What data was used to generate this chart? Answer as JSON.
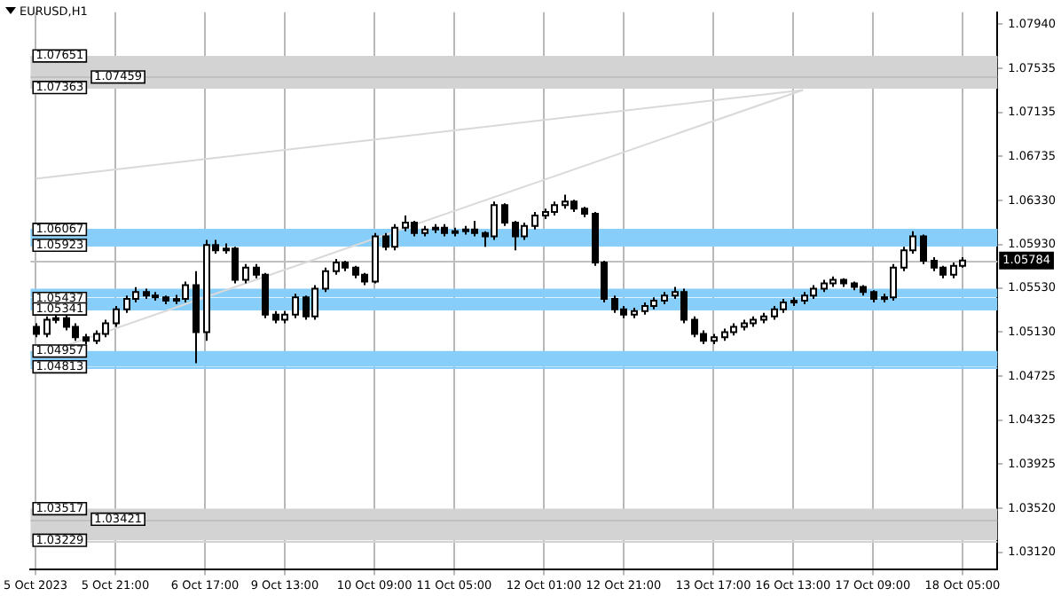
{
  "chart_data": {
    "type": "candlestick",
    "title": "EURUSD,H1",
    "categories": [
      "5 Oct 2023",
      null,
      null,
      null,
      null,
      null,
      null,
      null,
      "5 Oct 21:00",
      null,
      null,
      null,
      null,
      null,
      null,
      null,
      null,
      "6 Oct 17:00",
      null,
      null,
      null,
      null,
      null,
      null,
      null,
      "9 Oct 13:00",
      null,
      null,
      null,
      null,
      null,
      null,
      null,
      null,
      "10 Oct 09:00",
      null,
      null,
      null,
      null,
      null,
      null,
      null,
      "11 Oct 05:00",
      null,
      null,
      null,
      null,
      null,
      null,
      null,
      null,
      "12 Oct 01:00",
      null,
      null,
      null,
      null,
      null,
      null,
      null,
      "12 Oct 21:00",
      null,
      null,
      null,
      null,
      null,
      null,
      null,
      null,
      "13 Oct 17:00",
      null,
      null,
      null,
      null,
      null,
      null,
      null,
      "16 Oct 13:00",
      null,
      null,
      null,
      null,
      null,
      null,
      null,
      "17 Oct 09:00",
      null,
      null,
      null,
      null,
      null,
      null,
      null,
      null,
      "18 Oct 05:00",
      null,
      null,
      null
    ],
    "ohlc": [
      [
        1.05178,
        1.0521,
        1.05083,
        1.05114
      ],
      [
        1.05114,
        1.05273,
        1.05083,
        1.05242
      ],
      [
        1.05242,
        1.05305,
        1.0521,
        1.05257
      ],
      [
        1.05257,
        1.05289,
        1.05146,
        1.05178
      ],
      [
        1.05178,
        1.0521,
        1.05051,
        1.05083
      ],
      [
        1.05083,
        1.05114,
        1.0502,
        1.05051
      ],
      [
        1.05051,
        1.05146,
        1.0502,
        1.05114
      ],
      [
        1.05114,
        1.05242,
        1.05083,
        1.0521
      ],
      [
        1.0521,
        1.05368,
        1.05178,
        1.05337
      ],
      [
        1.05337,
        1.05464,
        1.05305,
        1.05432
      ],
      [
        1.05432,
        1.0554,
        1.054,
        1.05496
      ],
      [
        1.05496,
        1.05527,
        1.05432,
        1.05464
      ],
      [
        1.05464,
        1.05496,
        1.05416,
        1.05448
      ],
      [
        1.05448,
        1.05464,
        1.05384,
        1.05416
      ],
      [
        1.05416,
        1.0547,
        1.05384,
        1.05432
      ],
      [
        1.05432,
        1.05591,
        1.054,
        1.05559
      ],
      [
        1.05559,
        1.05686,
        1.04845,
        1.0513
      ],
      [
        1.0513,
        1.05972,
        1.05051,
        1.05924
      ],
      [
        1.05924,
        1.05972,
        1.05845,
        1.05877
      ],
      [
        1.05877,
        1.0594,
        1.05845,
        1.05892
      ],
      [
        1.05892,
        1.05908,
        1.05575,
        1.05607
      ],
      [
        1.05607,
        1.0575,
        1.05575,
        1.05718
      ],
      [
        1.05718,
        1.0575,
        1.05622,
        1.05654
      ],
      [
        1.05654,
        1.0567,
        1.05257,
        1.05289
      ],
      [
        1.05289,
        1.05321,
        1.0521,
        1.05242
      ],
      [
        1.05242,
        1.05321,
        1.0521,
        1.05289
      ],
      [
        1.05289,
        1.0548,
        1.05257,
        1.05448
      ],
      [
        1.05448,
        1.05464,
        1.05242,
        1.05273
      ],
      [
        1.05273,
        1.05559,
        1.05242,
        1.05527
      ],
      [
        1.05527,
        1.05718,
        1.05496,
        1.05686
      ],
      [
        1.05686,
        1.05797,
        1.05654,
        1.05765
      ],
      [
        1.05765,
        1.05781,
        1.05686,
        1.05718
      ],
      [
        1.05718,
        1.05734,
        1.05622,
        1.05654
      ],
      [
        1.05654,
        1.0567,
        1.05559,
        1.05591
      ],
      [
        1.05591,
        1.06035,
        1.05575,
        1.06003
      ],
      [
        1.06003,
        1.06035,
        1.05877,
        1.05908
      ],
      [
        1.05908,
        1.06115,
        1.05877,
        1.06083
      ],
      [
        1.06083,
        1.06194,
        1.06051,
        1.0613
      ],
      [
        1.0613,
        1.06146,
        1.06003,
        1.06035
      ],
      [
        1.06035,
        1.06099,
        1.06003,
        1.06067
      ],
      [
        1.06067,
        1.06115,
        1.06035,
        1.06083
      ],
      [
        1.06083,
        1.06115,
        1.06003,
        1.06035
      ],
      [
        1.06035,
        1.06083,
        1.06003,
        1.06051
      ],
      [
        1.06051,
        1.06099,
        1.06019,
        1.06067
      ],
      [
        1.06067,
        1.06146,
        1.06003,
        1.06035
      ],
      [
        1.06035,
        1.06051,
        1.05908,
        1.06003
      ],
      [
        1.06003,
        1.06321,
        1.05972,
        1.06289
      ],
      [
        1.06289,
        1.06305,
        1.06099,
        1.0613
      ],
      [
        1.0613,
        1.06146,
        1.05877,
        1.06003
      ],
      [
        1.06003,
        1.0613,
        1.05972,
        1.06099
      ],
      [
        1.06099,
        1.06226,
        1.06067,
        1.06194
      ],
      [
        1.06194,
        1.06257,
        1.06162,
        1.06226
      ],
      [
        1.06226,
        1.06321,
        1.06194,
        1.06289
      ],
      [
        1.06289,
        1.06384,
        1.06257,
        1.06321
      ],
      [
        1.06321,
        1.06337,
        1.06226,
        1.06257
      ],
      [
        1.06257,
        1.06273,
        1.06178,
        1.0621
      ],
      [
        1.0621,
        1.06226,
        1.05734,
        1.05765
      ],
      [
        1.05765,
        1.05781,
        1.054,
        1.05432
      ],
      [
        1.05432,
        1.05464,
        1.05305,
        1.05337
      ],
      [
        1.05337,
        1.05368,
        1.05257,
        1.05289
      ],
      [
        1.05289,
        1.05352,
        1.05257,
        1.05321
      ],
      [
        1.05321,
        1.054,
        1.05289,
        1.05368
      ],
      [
        1.05368,
        1.05448,
        1.05337,
        1.05416
      ],
      [
        1.05416,
        1.05496,
        1.05384,
        1.05464
      ],
      [
        1.05464,
        1.05543,
        1.05432,
        1.05496
      ],
      [
        1.05496,
        1.05527,
        1.0521,
        1.05242
      ],
      [
        1.05242,
        1.05273,
        1.05083,
        1.05114
      ],
      [
        1.05114,
        1.05146,
        1.0502,
        1.05051
      ],
      [
        1.05051,
        1.05114,
        1.0502,
        1.05083
      ],
      [
        1.05083,
        1.05162,
        1.05051,
        1.0513
      ],
      [
        1.0513,
        1.0521,
        1.05099,
        1.05178
      ],
      [
        1.05178,
        1.05242,
        1.05146,
        1.0521
      ],
      [
        1.0521,
        1.05273,
        1.05178,
        1.05242
      ],
      [
        1.05242,
        1.05305,
        1.0521,
        1.05273
      ],
      [
        1.05273,
        1.05368,
        1.05242,
        1.05337
      ],
      [
        1.05337,
        1.05432,
        1.05305,
        1.054
      ],
      [
        1.054,
        1.05448,
        1.05368,
        1.05416
      ],
      [
        1.05416,
        1.05496,
        1.05384,
        1.05464
      ],
      [
        1.05464,
        1.05559,
        1.05432,
        1.05527
      ],
      [
        1.05527,
        1.05607,
        1.05496,
        1.05575
      ],
      [
        1.05575,
        1.05638,
        1.05543,
        1.05607
      ],
      [
        1.05607,
        1.05622,
        1.05543,
        1.05575
      ],
      [
        1.05575,
        1.05591,
        1.05511,
        1.05543
      ],
      [
        1.05543,
        1.05559,
        1.05464,
        1.05496
      ],
      [
        1.05496,
        1.05511,
        1.054,
        1.05432
      ],
      [
        1.05432,
        1.0548,
        1.054,
        1.05448
      ],
      [
        1.05448,
        1.0575,
        1.05416,
        1.05718
      ],
      [
        1.05718,
        1.05908,
        1.05686,
        1.05877
      ],
      [
        1.05877,
        1.06051,
        1.05845,
        1.06003
      ],
      [
        1.06003,
        1.06019,
        1.0575,
        1.05781
      ],
      [
        1.05781,
        1.05813,
        1.05686,
        1.05718
      ],
      [
        1.05718,
        1.05734,
        1.05622,
        1.05654
      ],
      [
        1.05654,
        1.05765,
        1.05622,
        1.05734
      ],
      [
        1.05734,
        1.05813,
        1.05718,
        1.05784
      ],
      null,
      null,
      null
    ],
    "series": [
      {
        "type": "line",
        "color": "#d9d9d9",
        "values": [
          1.0653,
          null,
          null,
          null,
          null,
          null,
          null,
          null,
          null,
          null,
          null,
          null,
          null,
          null,
          null,
          null,
          null,
          null,
          null,
          null,
          null,
          null,
          null,
          null,
          null,
          null,
          null,
          null,
          null,
          null,
          null,
          null,
          null,
          null,
          null,
          null,
          null,
          null,
          null,
          null,
          null,
          null,
          null,
          null,
          null,
          null,
          null,
          null,
          null,
          null,
          null,
          null,
          null,
          null,
          null,
          null,
          null,
          null,
          null,
          null,
          null,
          null,
          null,
          null,
          null,
          null,
          null,
          null,
          null,
          null,
          null,
          null,
          null,
          null,
          null,
          null,
          null,
          1.0734,
          null,
          null,
          null,
          null,
          null,
          null,
          null,
          null,
          null,
          null,
          null,
          null,
          null,
          null,
          null,
          null,
          null,
          null,
          null
        ]
      },
      {
        "type": "line",
        "color": "#d9d9d9",
        "values": [
          1.0491,
          null,
          null,
          null,
          null,
          null,
          null,
          null,
          null,
          null,
          null,
          null,
          null,
          null,
          null,
          null,
          null,
          null,
          null,
          null,
          null,
          null,
          null,
          null,
          null,
          null,
          null,
          null,
          null,
          null,
          null,
          null,
          null,
          null,
          null,
          null,
          null,
          null,
          null,
          null,
          null,
          null,
          null,
          null,
          null,
          null,
          null,
          null,
          null,
          null,
          null,
          null,
          null,
          null,
          null,
          null,
          null,
          null,
          null,
          null,
          null,
          null,
          null,
          null,
          null,
          null,
          null,
          null,
          null,
          null,
          null,
          null,
          null,
          null,
          null,
          null,
          null,
          1.0734,
          null,
          null,
          null,
          null,
          null,
          null,
          null,
          null,
          null,
          null,
          null,
          null,
          null,
          null,
          null,
          null,
          null,
          null,
          null
        ]
      }
    ],
    "ylim": [
      1.0296,
      1.0805
    ],
    "yticks": [
      {
        "value": 1.0312,
        "label": "1.03120"
      },
      {
        "value": 1.0352,
        "label": "1.03520"
      },
      {
        "value": 1.03925,
        "label": "1.03925"
      },
      {
        "value": 1.04325,
        "label": "1.04325"
      },
      {
        "value": 1.04725,
        "label": "1.04725"
      },
      {
        "value": 1.0513,
        "label": "1.05130"
      },
      {
        "value": 1.0553,
        "label": "1.05530"
      },
      {
        "value": 1.0593,
        "label": "1.05930"
      },
      {
        "value": 1.0633,
        "label": "1.06330"
      },
      {
        "value": 1.06735,
        "label": "1.06735"
      },
      {
        "value": 1.07135,
        "label": "1.07135"
      },
      {
        "value": 1.07535,
        "label": "1.07535"
      },
      {
        "value": 1.0794,
        "label": "1.07940"
      }
    ],
    "bands": [
      {
        "axis": "y",
        "from": 1.05923,
        "to": 1.06067,
        "color": "#87cefa"
      },
      {
        "axis": "y",
        "from": 1.05448,
        "to": 1.05527,
        "color": "#87cefa"
      },
      {
        "axis": "y",
        "from": 1.05341,
        "to": 1.05437,
        "color": "#87cefa"
      },
      {
        "axis": "y",
        "from": 1.04813,
        "to": 1.04957,
        "color": "#87cefa"
      },
      {
        "axis": "y",
        "from": 1.07363,
        "to": 1.07651,
        "color": "#d3d3d3"
      },
      {
        "axis": "y",
        "from": 1.03229,
        "to": 1.03517,
        "color": "#d3d3d3"
      }
    ],
    "ref_lines": [
      {
        "axis": "y",
        "value": 1.05784,
        "label": "1.05784",
        "color": "#c0c0c0"
      },
      {
        "axis": "y",
        "value": 1.06067,
        "label": "1.06067",
        "color": "#87cefa"
      },
      {
        "axis": "y",
        "value": 1.05923,
        "label": "1.05923",
        "color": "#87cefa"
      },
      {
        "axis": "y",
        "value": 1.05437,
        "label": "1.05437",
        "color": "#87cefa"
      },
      {
        "axis": "y",
        "value": 1.05341,
        "label": "1.05341",
        "color": "#87cefa"
      },
      {
        "axis": "y",
        "value": 1.04957,
        "label": "1.04957",
        "color": "#87cefa"
      },
      {
        "axis": "y",
        "value": 1.04813,
        "label": "1.04813",
        "color": "#87cefa"
      },
      {
        "axis": "y",
        "value": 1.07651,
        "label": "1.07651",
        "color": "#d3d3d3"
      },
      {
        "axis": "y",
        "value": 1.07459,
        "label": "1.07459",
        "color": "#c0c0c0"
      },
      {
        "axis": "y",
        "value": 1.07363,
        "label": "1.07363",
        "color": "#d3d3d3"
      },
      {
        "axis": "y",
        "value": 1.03517,
        "label": "1.03517",
        "color": "#d3d3d3"
      },
      {
        "axis": "y",
        "value": 1.03421,
        "label": "1.03421",
        "color": "#c0c0c0"
      },
      {
        "axis": "y",
        "value": 1.03229,
        "label": "1.03229",
        "color": "#d3d3d3"
      }
    ],
    "grid": "x",
    "legend": false
  }
}
